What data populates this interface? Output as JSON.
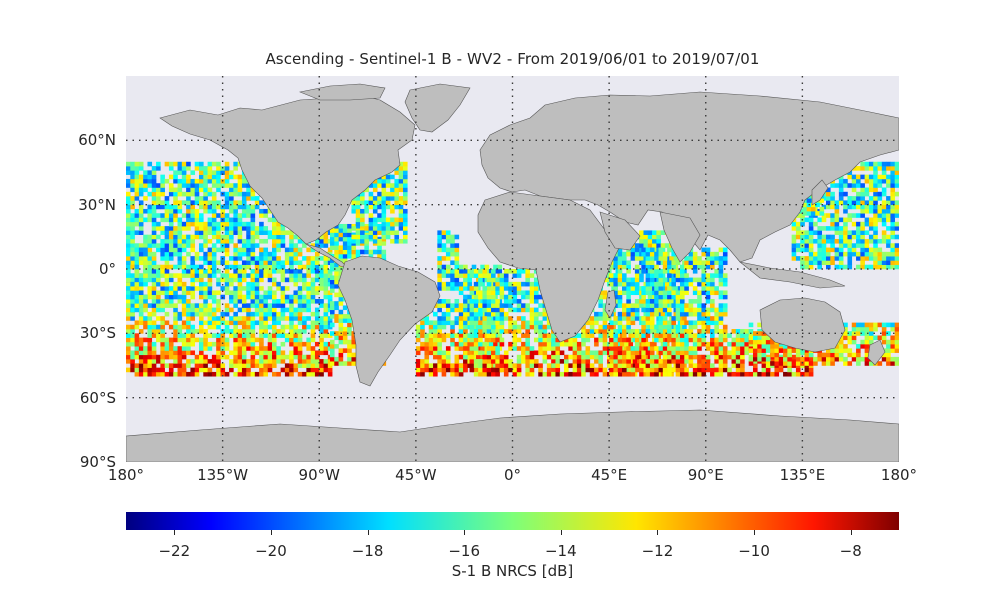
{
  "title": "Ascending - Sentinel-1 B - WV2 - From 2019/06/01 to 2019/07/01",
  "lat_labels": [
    "60°N",
    "30°N",
    "0°",
    "30°S",
    "60°S",
    "90°S"
  ],
  "lon_labels": [
    "180°",
    "135°W",
    "90°W",
    "45°W",
    "0°",
    "45°E",
    "90°E",
    "135°E",
    "180°"
  ],
  "colorbar": {
    "label": "S-1 B NRCS [dB]",
    "ticks": [
      "−22",
      "−20",
      "−18",
      "−16",
      "−14",
      "−12",
      "−10",
      "−8"
    ],
    "colormap": "jet",
    "range": [
      -23,
      -7
    ]
  },
  "colors": {
    "ocean_background": "#e9e9f1",
    "land": "#bebebe",
    "coast": "#555555",
    "grid": "#3a3a3a"
  },
  "map_data": {
    "projection": "PlateCarree",
    "extent_lon": [
      -180,
      180
    ],
    "extent_lat": [
      -90,
      90
    ],
    "grid_lons": [
      -135,
      -90,
      -45,
      0,
      45,
      90,
      135
    ],
    "grid_lats": [
      60,
      30,
      0,
      -30,
      -60
    ],
    "data_lat_range": [
      -50,
      50
    ]
  }
}
